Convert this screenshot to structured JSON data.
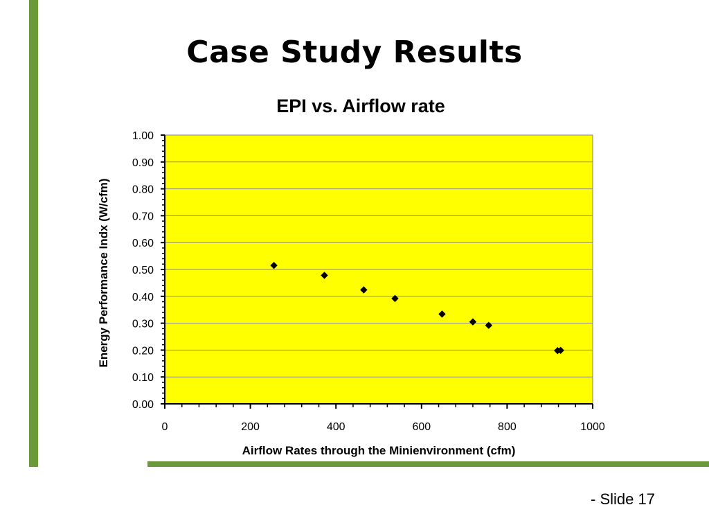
{
  "slide": {
    "title": "Case Study Results",
    "slide_number": "- Slide 17"
  },
  "colors": {
    "accent_green": "#6a9a3a",
    "plot_background": "#ffff00",
    "marker": "#000000"
  },
  "chart_data": {
    "type": "scatter",
    "title": "EPI vs. Airflow rate",
    "xlabel": "Airflow Rates through the Minienvironment (cfm)",
    "ylabel": "Energy Performance Indx (W/cfm)",
    "xlim": [
      0,
      1000
    ],
    "ylim": [
      0,
      1
    ],
    "x_ticks": [
      "0",
      "200",
      "400",
      "600",
      "800",
      "1000"
    ],
    "y_ticks": [
      "0.00",
      "0.10",
      "0.20",
      "0.30",
      "0.40",
      "0.50",
      "0.60",
      "0.70",
      "0.80",
      "0.90",
      "1.00"
    ],
    "grid": true,
    "marker": "diamond",
    "series": [
      {
        "x": [
          255,
          373,
          465,
          538,
          648,
          720,
          757,
          918,
          925
        ],
        "y": [
          0.515,
          0.478,
          0.424,
          0.392,
          0.334,
          0.305,
          0.292,
          0.198,
          0.199
        ]
      }
    ]
  }
}
